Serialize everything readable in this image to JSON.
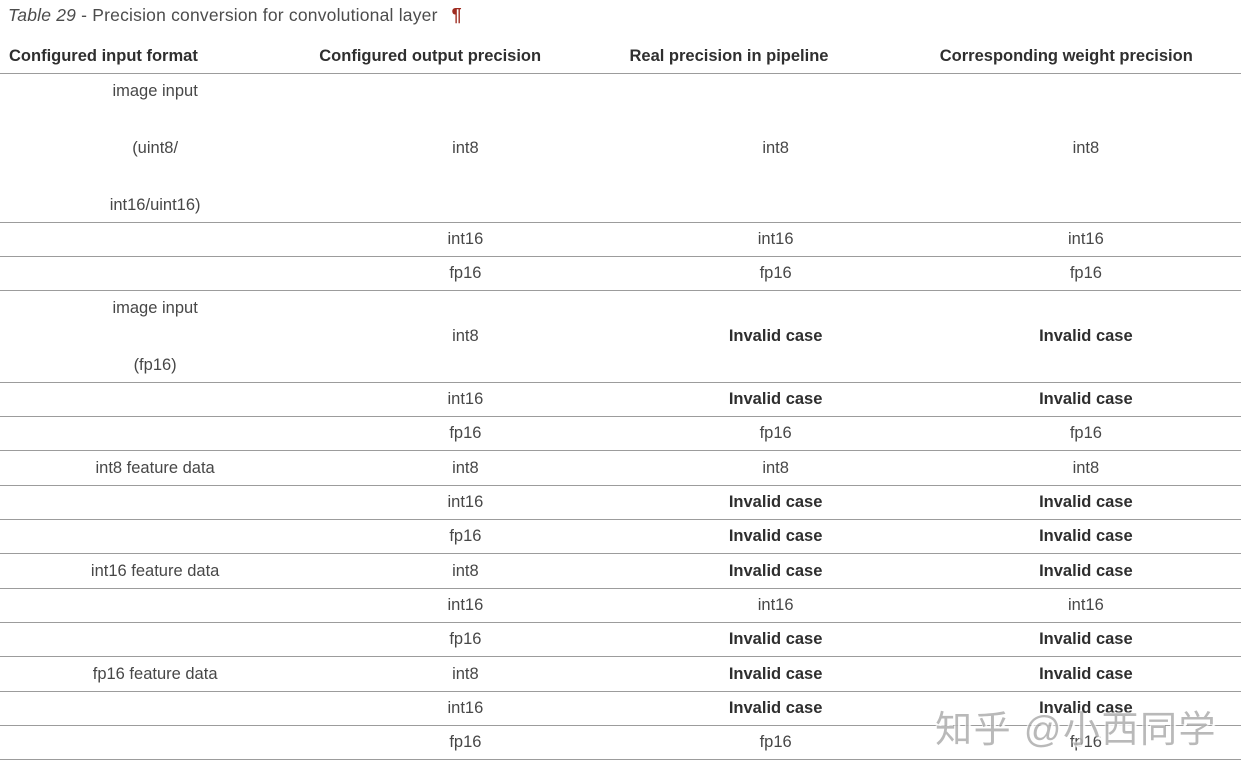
{
  "title": {
    "label_italic": "Table 29",
    "label_rest": " - Precision conversion for convolutional layer",
    "pilcrow": "¶"
  },
  "colors": {
    "pilcrow": "#9e2b20",
    "border": "#9c9c9c",
    "invalid_text": "#2e2e2e"
  },
  "table": {
    "columns": [
      "Configured input format",
      "Configured output precision",
      "Real precision in pipeline",
      "Corresponding weight precision"
    ],
    "groups": [
      {
        "input_format_lines": [
          "image input",
          "(uint8/",
          "int16/uint16)"
        ],
        "rows": [
          {
            "cells": [
              {
                "text": "int8",
                "bold": false
              },
              {
                "text": "int8",
                "bold": false
              },
              {
                "text": "int8",
                "bold": false
              }
            ]
          },
          {
            "cells": [
              {
                "text": "int16",
                "bold": false
              },
              {
                "text": "int16",
                "bold": false
              },
              {
                "text": "int16",
                "bold": false
              }
            ]
          },
          {
            "cells": [
              {
                "text": "fp16",
                "bold": false
              },
              {
                "text": "fp16",
                "bold": false
              },
              {
                "text": "fp16",
                "bold": false
              }
            ]
          }
        ]
      },
      {
        "input_format_lines": [
          "image input",
          "(fp16)"
        ],
        "rows": [
          {
            "cells": [
              {
                "text": "int8",
                "bold": false
              },
              {
                "text": "Invalid case",
                "bold": true
              },
              {
                "text": "Invalid case",
                "bold": true
              }
            ]
          },
          {
            "cells": [
              {
                "text": "int16",
                "bold": false
              },
              {
                "text": "Invalid case",
                "bold": true
              },
              {
                "text": "Invalid case",
                "bold": true
              }
            ]
          },
          {
            "cells": [
              {
                "text": "fp16",
                "bold": false
              },
              {
                "text": "fp16",
                "bold": false
              },
              {
                "text": "fp16",
                "bold": false
              }
            ]
          }
        ]
      },
      {
        "input_format_lines": [
          "int8 feature data"
        ],
        "rows": [
          {
            "cells": [
              {
                "text": "int8",
                "bold": false
              },
              {
                "text": "int8",
                "bold": false
              },
              {
                "text": "int8",
                "bold": false
              }
            ]
          },
          {
            "cells": [
              {
                "text": "int16",
                "bold": false
              },
              {
                "text": "Invalid case",
                "bold": true
              },
              {
                "text": "Invalid case",
                "bold": true
              }
            ]
          },
          {
            "cells": [
              {
                "text": "fp16",
                "bold": false
              },
              {
                "text": "Invalid case",
                "bold": true
              },
              {
                "text": "Invalid case",
                "bold": true
              }
            ]
          }
        ]
      },
      {
        "input_format_lines": [
          "int16 feature data"
        ],
        "rows": [
          {
            "cells": [
              {
                "text": "int8",
                "bold": false
              },
              {
                "text": "Invalid case",
                "bold": true
              },
              {
                "text": "Invalid case",
                "bold": true
              }
            ]
          },
          {
            "cells": [
              {
                "text": "int16",
                "bold": false
              },
              {
                "text": "int16",
                "bold": false
              },
              {
                "text": "int16",
                "bold": false
              }
            ]
          },
          {
            "cells": [
              {
                "text": "fp16",
                "bold": false
              },
              {
                "text": "Invalid case",
                "bold": true
              },
              {
                "text": "Invalid case",
                "bold": true
              }
            ]
          }
        ]
      },
      {
        "input_format_lines": [
          "fp16 feature data"
        ],
        "rows": [
          {
            "cells": [
              {
                "text": "int8",
                "bold": false
              },
              {
                "text": "Invalid case",
                "bold": true
              },
              {
                "text": "Invalid case",
                "bold": true
              }
            ]
          },
          {
            "cells": [
              {
                "text": "int16",
                "bold": false
              },
              {
                "text": "Invalid case",
                "bold": true
              },
              {
                "text": "Invalid case",
                "bold": true
              }
            ]
          },
          {
            "cells": [
              {
                "text": "fp16",
                "bold": false
              },
              {
                "text": "fp16",
                "bold": false
              },
              {
                "text": "fp16",
                "bold": false
              }
            ]
          }
        ]
      }
    ]
  },
  "watermark": {
    "text": "知乎 @小西同学"
  }
}
